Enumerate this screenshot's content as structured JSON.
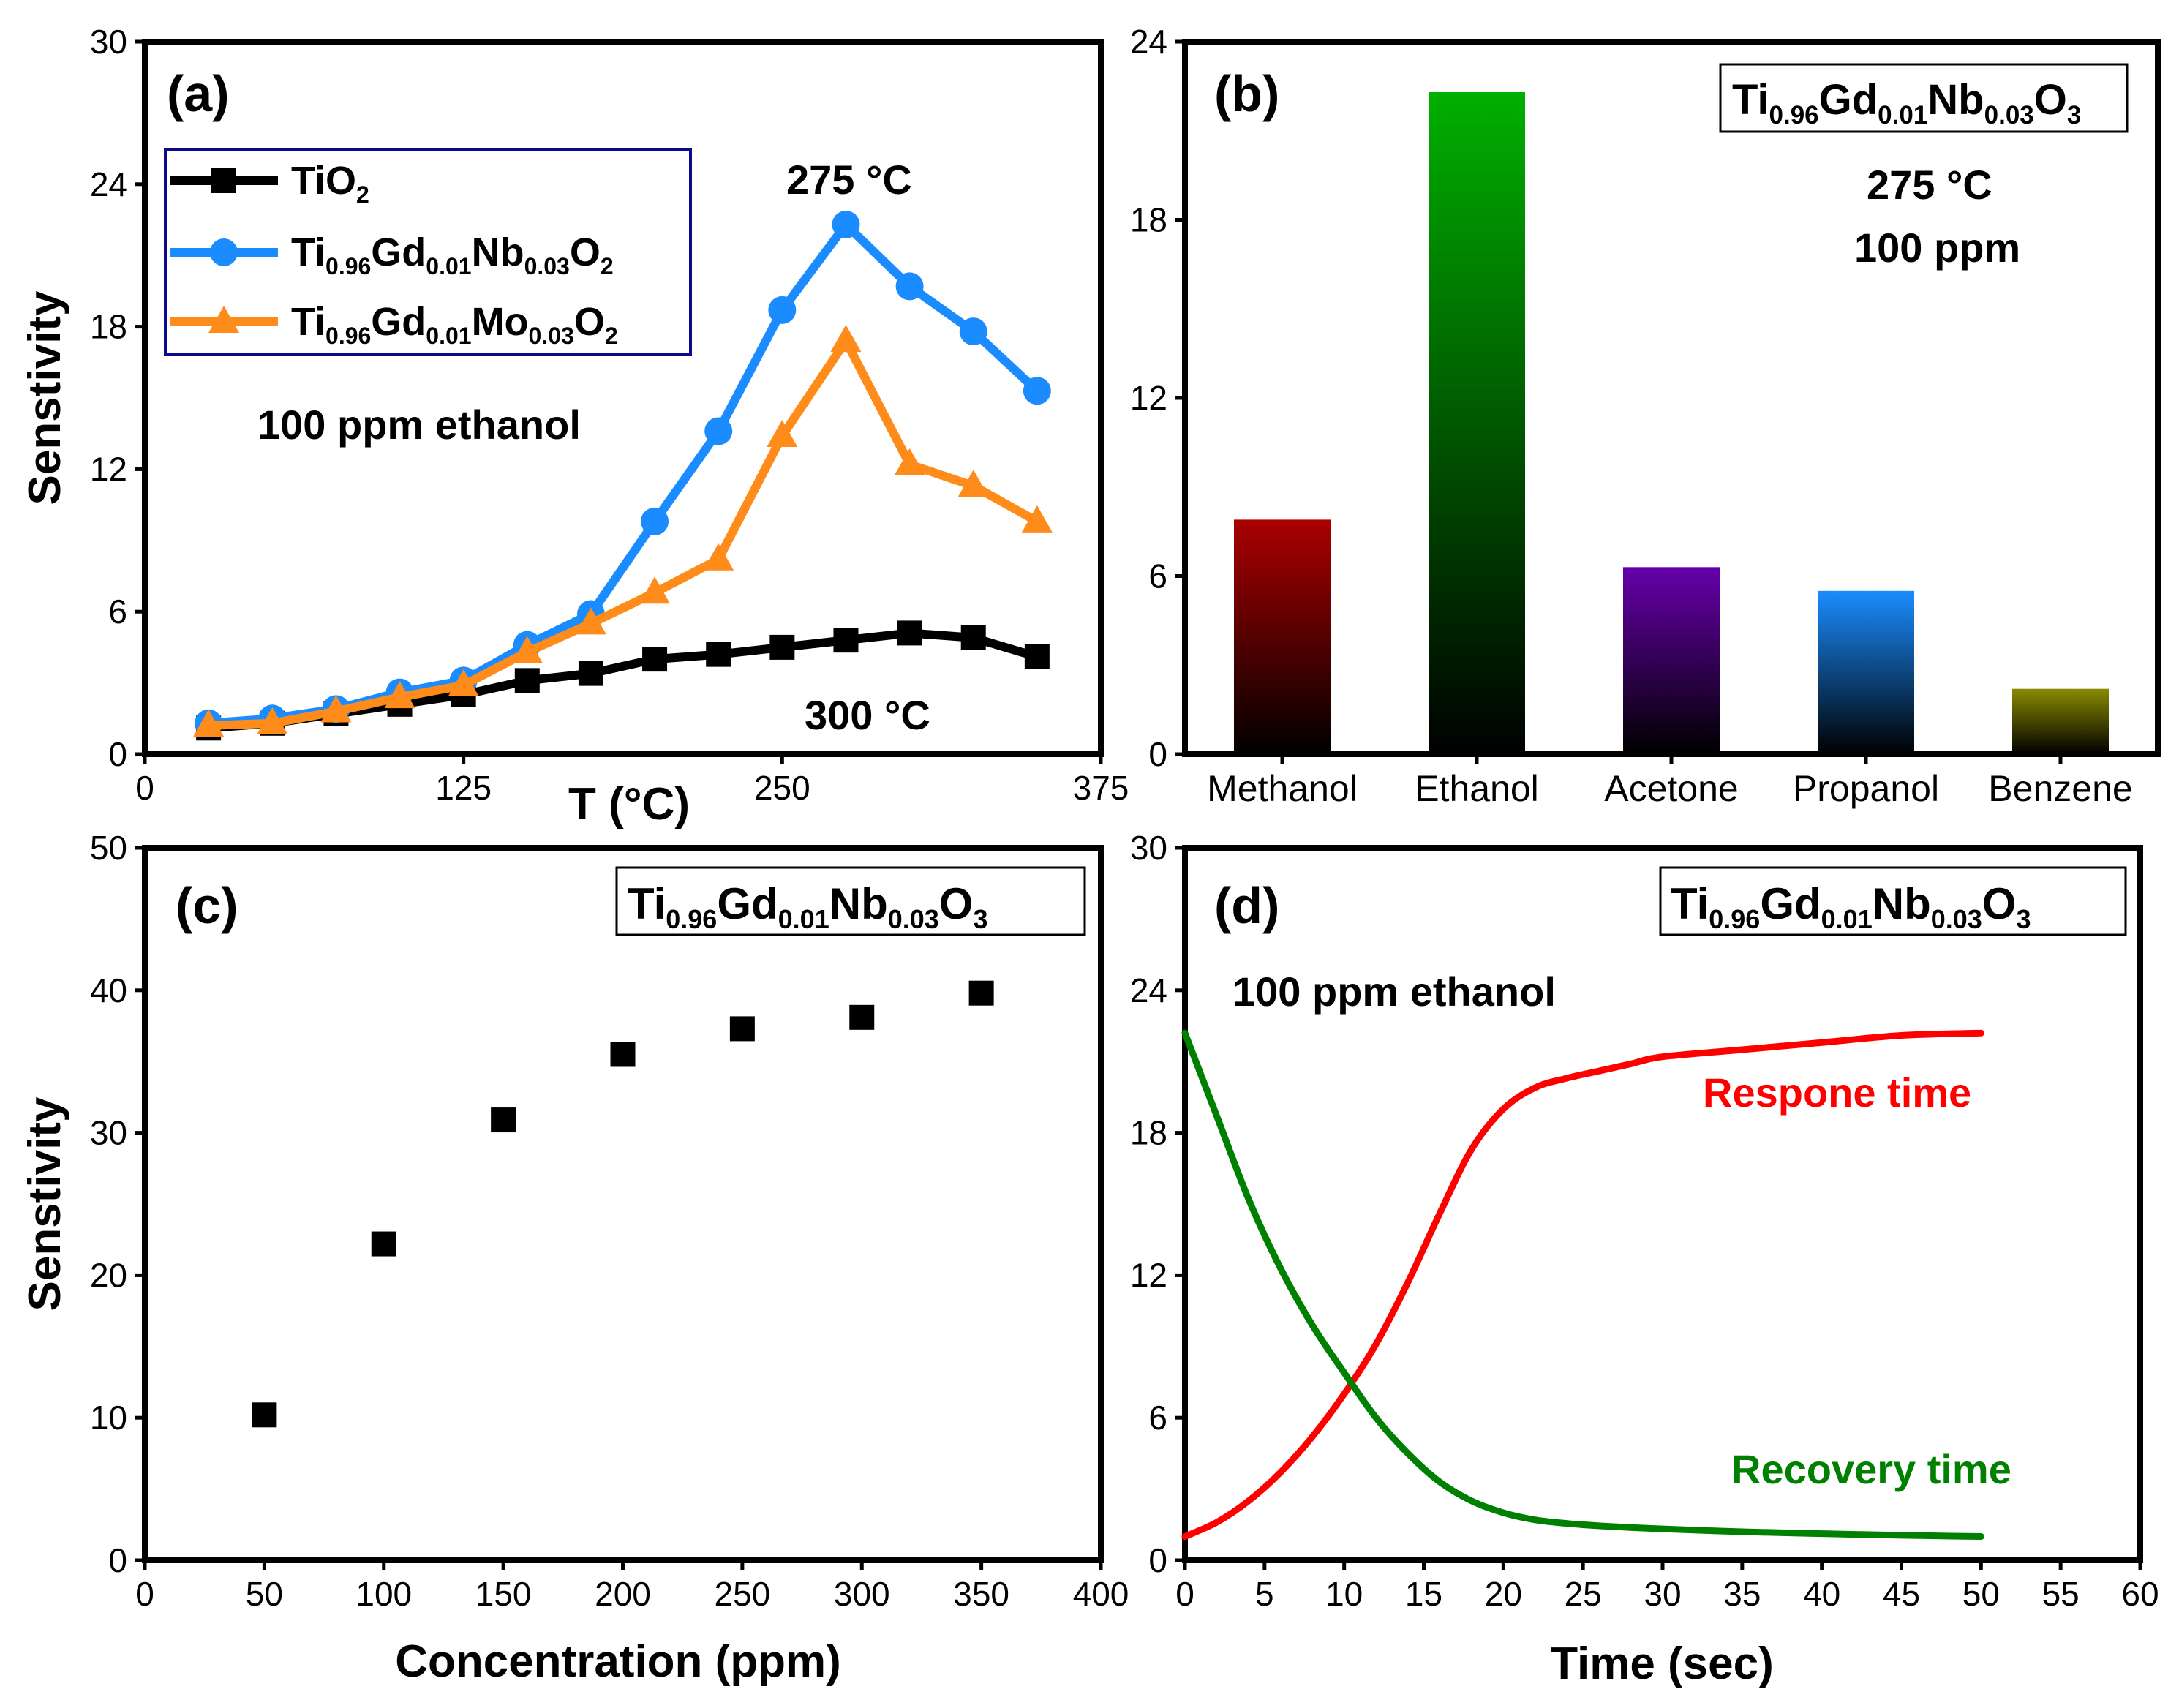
{
  "chart_data": [
    {
      "panel": "(a)",
      "type": "line",
      "xlabel": "T (°C)",
      "ylabel": "Senstivity",
      "xlim": [
        0,
        375
      ],
      "ylim": [
        0,
        30
      ],
      "xticks": [
        "0",
        "125",
        "250",
        "375"
      ],
      "yticks": [
        "0",
        "6",
        "12",
        "18",
        "24",
        "30"
      ],
      "annotations": [
        "100 ppm ethanol",
        "275 °C",
        "300 °C"
      ],
      "legend_position": "top-left",
      "x": [
        25,
        50,
        75,
        100,
        125,
        150,
        175,
        200,
        225,
        250,
        275,
        300,
        325,
        350
      ],
      "series": [
        {
          "name": "TiO2",
          "name_main": "TiO",
          "name_sub": "2",
          "color": "#000000",
          "marker": "square",
          "values": [
            1.1,
            1.3,
            1.7,
            2.1,
            2.5,
            3.1,
            3.4,
            4.0,
            4.2,
            4.5,
            4.8,
            5.1,
            4.9,
            4.1
          ]
        },
        {
          "name": "Ti0.96Gd0.01Nb0.03O2",
          "color": "#1a8cff",
          "marker": "circle",
          "parts": [
            [
              "Ti",
              ""
            ],
            [
              "0.96",
              "sub"
            ],
            [
              "Gd",
              ""
            ],
            [
              "0.01",
              "sub"
            ],
            [
              "Nb",
              ""
            ],
            [
              "0.03",
              "sub"
            ],
            [
              "O",
              ""
            ],
            [
              "2",
              "sub"
            ]
          ],
          "values": [
            1.3,
            1.5,
            1.9,
            2.6,
            3.1,
            4.6,
            5.9,
            9.8,
            13.6,
            18.7,
            22.3,
            19.7,
            17.8,
            15.3
          ]
        },
        {
          "name": "Ti0.96Gd0.01Mo0.03O2",
          "color": "#ff8c1a",
          "marker": "triangle",
          "parts": [
            [
              "Ti",
              ""
            ],
            [
              "0.96",
              "sub"
            ],
            [
              "Gd",
              ""
            ],
            [
              "0.01",
              "sub"
            ],
            [
              "Mo",
              ""
            ],
            [
              "0.03",
              "sub"
            ],
            [
              "O",
              ""
            ],
            [
              "2",
              "sub"
            ]
          ],
          "values": [
            1.2,
            1.3,
            1.8,
            2.4,
            2.9,
            4.3,
            5.5,
            6.8,
            8.2,
            13.4,
            17.4,
            12.2,
            11.3,
            9.8
          ]
        }
      ]
    },
    {
      "panel": "(b)",
      "type": "bar",
      "ylim": [
        0,
        24
      ],
      "yticks": [
        "0",
        "6",
        "12",
        "18",
        "24"
      ],
      "categories": [
        "Methanol",
        "Ethanol",
        "Acetone",
        "Propanol",
        "Benzene"
      ],
      "values": [
        7.9,
        22.3,
        6.3,
        5.5,
        2.2
      ],
      "colors": [
        "#aa0000",
        "#00b000",
        "#6600aa",
        "#1a8cff",
        "#8a8a00"
      ],
      "annotations": [
        "275 °C",
        "100 ppm"
      ],
      "formula_parts": [
        [
          "Ti",
          ""
        ],
        [
          "0.96",
          "sub"
        ],
        [
          "Gd",
          ""
        ],
        [
          "0.01",
          "sub"
        ],
        [
          "Nb",
          ""
        ],
        [
          "0.03",
          "sub"
        ],
        [
          "O",
          ""
        ],
        [
          "3",
          "sub"
        ]
      ]
    },
    {
      "panel": "(c)",
      "type": "scatter",
      "xlabel": "Concentration (ppm)",
      "ylabel": "Senstivity",
      "xlim": [
        0,
        400
      ],
      "ylim": [
        0,
        50
      ],
      "xticks": [
        "0",
        "50",
        "100",
        "150",
        "200",
        "250",
        "300",
        "350",
        "400"
      ],
      "yticks": [
        "0",
        "10",
        "20",
        "30",
        "40",
        "50"
      ],
      "x": [
        50,
        100,
        150,
        200,
        250,
        300,
        350
      ],
      "y": [
        10.2,
        22.2,
        30.9,
        35.5,
        37.3,
        38.1,
        39.8
      ],
      "formula_parts": [
        [
          "Ti",
          ""
        ],
        [
          "0.96",
          "sub"
        ],
        [
          "Gd",
          ""
        ],
        [
          "0.01",
          "sub"
        ],
        [
          "Nb",
          ""
        ],
        [
          "0.03",
          "sub"
        ],
        [
          "O",
          ""
        ],
        [
          "3",
          "sub"
        ]
      ]
    },
    {
      "panel": "(d)",
      "type": "line",
      "xlabel": "Time (sec)",
      "xlim": [
        0,
        60
      ],
      "ylim": [
        0,
        30
      ],
      "xticks": [
        "0",
        "5",
        "10",
        "15",
        "20",
        "25",
        "30",
        "35",
        "40",
        "45",
        "50",
        "55",
        "60"
      ],
      "yticks": [
        "0",
        "6",
        "12",
        "18",
        "24",
        "30"
      ],
      "annotations": [
        "100 ppm ethanol"
      ],
      "series": [
        {
          "name": "Respone time",
          "color": "#ff0000",
          "x": [
            0,
            2,
            4,
            6,
            8,
            10,
            12,
            14,
            16,
            18,
            20,
            22,
            24,
            26,
            28,
            30,
            35,
            40,
            45,
            50
          ],
          "y": [
            1.0,
            1.6,
            2.5,
            3.7,
            5.2,
            7.0,
            9.1,
            11.7,
            14.6,
            17.3,
            19.0,
            19.9,
            20.3,
            20.6,
            20.9,
            21.2,
            21.5,
            21.8,
            22.1,
            22.2
          ]
        },
        {
          "name": "Recovery time",
          "color": "#008000",
          "x": [
            0,
            2,
            4,
            6,
            8,
            10,
            12,
            14,
            16,
            18,
            20,
            22,
            24,
            26,
            28,
            30,
            35,
            40,
            45,
            50
          ],
          "y": [
            22.2,
            18.7,
            15.2,
            12.3,
            9.9,
            7.9,
            6.0,
            4.5,
            3.3,
            2.5,
            2.0,
            1.7,
            1.55,
            1.45,
            1.38,
            1.32,
            1.2,
            1.12,
            1.05,
            1.0
          ]
        }
      ],
      "formula_parts": [
        [
          "Ti",
          ""
        ],
        [
          "0.96",
          "sub"
        ],
        [
          "Gd",
          ""
        ],
        [
          "0.01",
          "sub"
        ],
        [
          "Nb",
          ""
        ],
        [
          "0.03",
          "sub"
        ],
        [
          "O",
          ""
        ],
        [
          "3",
          "sub"
        ]
      ]
    }
  ]
}
